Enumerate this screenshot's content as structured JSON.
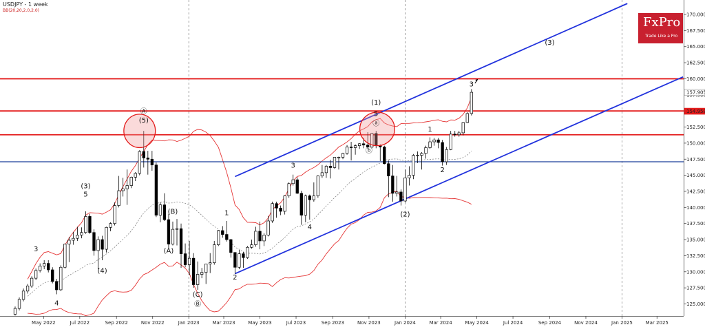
{
  "header": {
    "symbol_timeframe": "USDJPY - 1 week",
    "indicator": "BB(20,20,2.0,2.0)"
  },
  "brand": {
    "name": "FxPro",
    "tagline": "Trade Like a Pro"
  },
  "colors": {
    "candle_up": "#ffffff",
    "candle_down": "#000000",
    "resistance": "#e31a1a",
    "support": "#1a3f9a",
    "channel": "#2233dd",
    "bands": "#e53535",
    "midband": "#777777",
    "brand": "#c8202f"
  },
  "chart_data": {
    "type": "candlestick",
    "instrument": "USDJPY",
    "timeframe": "1 week",
    "ylim": [
      123.2,
      171.7
    ],
    "y_ticks": [
      125.0,
      127.5,
      130.0,
      132.5,
      135.0,
      137.5,
      140.0,
      142.5,
      145.0,
      147.5,
      150.0,
      152.5,
      155.0,
      157.5,
      160.0,
      162.5,
      165.0,
      167.5,
      170.0
    ],
    "y_tick_labels": [
      "125.000",
      "127.500",
      "130.000",
      "132.500",
      "135.000",
      "137.500",
      "140.000",
      "142.500",
      "145.000",
      "147.500",
      "150.000",
      "152.500",
      "155.000",
      "157.500",
      "160.000",
      "162.500",
      "165.000",
      "167.500",
      "170.000"
    ],
    "x_labels": [
      "May 2022",
      "Jul 2022",
      "Sep 2022",
      "Nov 2022",
      "Jan 2023",
      "Mar 2023",
      "May 2023",
      "Jul 2023",
      "Sep 2023",
      "Nov 2023",
      "Jan 2024",
      "Mar 2024",
      "May 2024",
      "Jul 2024",
      "Sep 2024",
      "Nov 2024",
      "Jan 2025",
      "Mar 2025"
    ],
    "x_dates": [
      "2022-05-01",
      "2022-07-01",
      "2022-09-01",
      "2022-11-01",
      "2023-01-01",
      "2023-03-01",
      "2023-05-01",
      "2023-07-01",
      "2023-09-01",
      "2023-11-01",
      "2024-01-01",
      "2024-03-01",
      "2024-05-01",
      "2024-07-01",
      "2024-09-01",
      "2024-11-01",
      "2025-01-01",
      "2025-03-01"
    ],
    "year_dividers": [
      "2023-01-01",
      "2024-01-01",
      "2025-01-01"
    ],
    "current_price_labels": [
      {
        "label": "157.905",
        "value": 157.905,
        "color": "#ffffff"
      },
      {
        "label": "154.958",
        "value": 154.958,
        "color": "#e31a1a"
      }
    ],
    "horizontal_levels": [
      {
        "value": 160.0,
        "color": "#e31a1a",
        "kind": "resistance"
      },
      {
        "value": 155.0,
        "color": "#e31a1a",
        "kind": "resistance"
      },
      {
        "value": 151.3,
        "color": "#e31a1a",
        "kind": "resistance"
      },
      {
        "value": 147.1,
        "color": "#1a3f9a",
        "kind": "support"
      }
    ],
    "channel_lines": [
      {
        "from": [
          "2023-03-20",
          144.8
        ],
        "to": [
          "2025-01-10",
          171.7
        ],
        "color": "#2233dd"
      },
      {
        "from": [
          "2023-03-20",
          129.7
        ],
        "to": [
          "2025-04-14",
          160.3
        ],
        "color": "#2233dd"
      }
    ],
    "circles": [
      {
        "center": [
          "2022-10-10",
          151.9
        ],
        "r_weeks": 3.8,
        "r_yen": 2.6
      },
      {
        "center": [
          "2023-11-15",
          152.2
        ],
        "r_weeks": 4.2,
        "r_yen": 2.6
      }
    ],
    "candles": [
      {
        "d": "2022-03-14",
        "o": 123.4,
        "h": 124.6,
        "l": 123.2,
        "c": 124.3
      },
      {
        "d": "2022-03-21",
        "o": 124.3,
        "h": 126.0,
        "l": 124.0,
        "c": 125.7
      },
      {
        "d": "2022-03-28",
        "o": 125.7,
        "h": 127.4,
        "l": 125.4,
        "c": 127.0
      },
      {
        "d": "2022-04-04",
        "o": 127.0,
        "h": 128.1,
        "l": 126.6,
        "c": 127.8
      },
      {
        "d": "2022-04-11",
        "o": 127.8,
        "h": 129.3,
        "l": 127.5,
        "c": 129.0
      },
      {
        "d": "2022-04-18",
        "o": 129.0,
        "h": 130.5,
        "l": 128.7,
        "c": 130.2
      },
      {
        "d": "2022-04-25",
        "o": 130.2,
        "h": 131.3,
        "l": 129.9,
        "c": 130.9
      },
      {
        "d": "2022-05-02",
        "o": 130.9,
        "h": 131.8,
        "l": 130.4,
        "c": 131.3
      },
      {
        "d": "2022-05-09",
        "o": 131.3,
        "h": 131.8,
        "l": 129.9,
        "c": 130.3
      },
      {
        "d": "2022-05-16",
        "o": 130.3,
        "h": 130.7,
        "l": 128.2,
        "c": 128.5
      },
      {
        "d": "2022-05-23",
        "o": 128.5,
        "h": 128.9,
        "l": 126.5,
        "c": 127.2
      },
      {
        "d": "2022-05-30",
        "o": 127.2,
        "h": 131.0,
        "l": 127.0,
        "c": 130.7
      },
      {
        "d": "2022-06-06",
        "o": 130.7,
        "h": 134.4,
        "l": 130.5,
        "c": 134.3
      },
      {
        "d": "2022-06-13",
        "o": 134.3,
        "h": 135.4,
        "l": 131.5,
        "c": 134.9
      },
      {
        "d": "2022-06-20",
        "o": 134.9,
        "h": 136.2,
        "l": 134.2,
        "c": 135.2
      },
      {
        "d": "2022-06-27",
        "o": 135.2,
        "h": 137.0,
        "l": 134.8,
        "c": 135.7
      },
      {
        "d": "2022-07-04",
        "o": 135.7,
        "h": 136.9,
        "l": 135.2,
        "c": 136.1
      },
      {
        "d": "2022-07-11",
        "o": 136.1,
        "h": 139.4,
        "l": 135.9,
        "c": 138.6
      },
      {
        "d": "2022-07-18",
        "o": 138.6,
        "h": 139.0,
        "l": 135.9,
        "c": 136.1
      },
      {
        "d": "2022-07-25",
        "o": 136.1,
        "h": 136.6,
        "l": 132.5,
        "c": 133.3
      },
      {
        "d": "2022-08-01",
        "o": 133.3,
        "h": 135.5,
        "l": 130.4,
        "c": 135.0
      },
      {
        "d": "2022-08-08",
        "o": 135.0,
        "h": 135.6,
        "l": 131.8,
        "c": 133.5
      },
      {
        "d": "2022-08-15",
        "o": 133.5,
        "h": 137.0,
        "l": 133.0,
        "c": 136.9
      },
      {
        "d": "2022-08-22",
        "o": 136.9,
        "h": 137.7,
        "l": 136.3,
        "c": 137.5
      },
      {
        "d": "2022-08-29",
        "o": 137.5,
        "h": 140.8,
        "l": 137.2,
        "c": 140.3
      },
      {
        "d": "2022-09-05",
        "o": 140.3,
        "h": 144.9,
        "l": 140.0,
        "c": 142.6
      },
      {
        "d": "2022-09-12",
        "o": 142.6,
        "h": 144.6,
        "l": 141.7,
        "c": 142.9
      },
      {
        "d": "2022-09-19",
        "o": 142.9,
        "h": 145.9,
        "l": 140.4,
        "c": 143.4
      },
      {
        "d": "2022-09-26",
        "o": 143.4,
        "h": 144.8,
        "l": 143.0,
        "c": 144.7
      },
      {
        "d": "2022-10-03",
        "o": 144.7,
        "h": 145.5,
        "l": 144.1,
        "c": 145.3
      },
      {
        "d": "2022-10-10",
        "o": 145.3,
        "h": 148.9,
        "l": 145.0,
        "c": 148.7
      },
      {
        "d": "2022-10-17",
        "o": 148.7,
        "h": 151.9,
        "l": 146.2,
        "c": 147.7
      },
      {
        "d": "2022-10-24",
        "o": 147.7,
        "h": 148.8,
        "l": 145.1,
        "c": 147.5
      },
      {
        "d": "2022-10-31",
        "o": 147.5,
        "h": 148.8,
        "l": 145.7,
        "c": 146.6
      },
      {
        "d": "2022-11-07",
        "o": 146.6,
        "h": 147.0,
        "l": 138.5,
        "c": 138.8
      },
      {
        "d": "2022-11-14",
        "o": 138.8,
        "h": 140.8,
        "l": 137.7,
        "c": 140.4
      },
      {
        "d": "2022-11-21",
        "o": 140.4,
        "h": 142.2,
        "l": 137.9,
        "c": 138.1
      },
      {
        "d": "2022-11-28",
        "o": 138.1,
        "h": 139.0,
        "l": 133.6,
        "c": 134.3
      },
      {
        "d": "2022-12-05",
        "o": 134.3,
        "h": 137.8,
        "l": 134.1,
        "c": 136.6
      },
      {
        "d": "2022-12-12",
        "o": 136.6,
        "h": 138.2,
        "l": 134.1,
        "c": 136.7
      },
      {
        "d": "2022-12-19",
        "o": 136.7,
        "h": 137.5,
        "l": 130.6,
        "c": 132.8
      },
      {
        "d": "2022-12-26",
        "o": 132.8,
        "h": 134.4,
        "l": 130.7,
        "c": 131.1
      },
      {
        "d": "2023-01-02",
        "o": 131.1,
        "h": 134.8,
        "l": 129.5,
        "c": 132.1
      },
      {
        "d": "2023-01-09",
        "o": 132.1,
        "h": 132.9,
        "l": 127.5,
        "c": 128.0
      },
      {
        "d": "2023-01-16",
        "o": 128.0,
        "h": 131.6,
        "l": 127.2,
        "c": 129.6
      },
      {
        "d": "2023-01-23",
        "o": 129.6,
        "h": 130.6,
        "l": 129.0,
        "c": 129.9
      },
      {
        "d": "2023-01-30",
        "o": 129.9,
        "h": 131.2,
        "l": 128.1,
        "c": 131.2
      },
      {
        "d": "2023-02-06",
        "o": 131.2,
        "h": 132.9,
        "l": 129.8,
        "c": 131.4
      },
      {
        "d": "2023-02-13",
        "o": 131.4,
        "h": 134.8,
        "l": 131.1,
        "c": 134.2
      },
      {
        "d": "2023-02-20",
        "o": 134.2,
        "h": 136.5,
        "l": 134.0,
        "c": 136.4
      },
      {
        "d": "2023-02-27",
        "o": 136.4,
        "h": 137.1,
        "l": 135.3,
        "c": 135.8
      },
      {
        "d": "2023-03-06",
        "o": 135.8,
        "h": 137.9,
        "l": 134.7,
        "c": 135.0
      },
      {
        "d": "2023-03-13",
        "o": 135.0,
        "h": 135.1,
        "l": 132.2,
        "c": 133.0
      },
      {
        "d": "2023-03-20",
        "o": 133.0,
        "h": 133.0,
        "l": 129.7,
        "c": 130.7
      },
      {
        "d": "2023-03-27",
        "o": 130.7,
        "h": 133.4,
        "l": 130.4,
        "c": 132.8
      },
      {
        "d": "2023-04-03",
        "o": 132.8,
        "h": 133.1,
        "l": 130.6,
        "c": 132.2
      },
      {
        "d": "2023-04-10",
        "o": 132.2,
        "h": 134.0,
        "l": 132.0,
        "c": 133.8
      },
      {
        "d": "2023-04-17",
        "o": 133.8,
        "h": 135.0,
        "l": 133.6,
        "c": 134.2
      },
      {
        "d": "2023-04-24",
        "o": 134.2,
        "h": 137.0,
        "l": 133.9,
        "c": 136.3
      },
      {
        "d": "2023-05-01",
        "o": 136.3,
        "h": 137.8,
        "l": 133.5,
        "c": 134.8
      },
      {
        "d": "2023-05-08",
        "o": 134.8,
        "h": 136.0,
        "l": 134.0,
        "c": 135.7
      },
      {
        "d": "2023-05-15",
        "o": 135.7,
        "h": 138.7,
        "l": 135.5,
        "c": 137.9
      },
      {
        "d": "2023-05-22",
        "o": 137.9,
        "h": 140.9,
        "l": 137.6,
        "c": 140.6
      },
      {
        "d": "2023-05-29",
        "o": 140.6,
        "h": 140.9,
        "l": 138.4,
        "c": 139.9
      },
      {
        "d": "2023-06-05",
        "o": 139.9,
        "h": 140.3,
        "l": 138.8,
        "c": 139.4
      },
      {
        "d": "2023-06-12",
        "o": 139.4,
        "h": 141.9,
        "l": 138.9,
        "c": 141.8
      },
      {
        "d": "2023-06-19",
        "o": 141.8,
        "h": 143.9,
        "l": 141.5,
        "c": 143.7
      },
      {
        "d": "2023-06-26",
        "o": 143.7,
        "h": 145.1,
        "l": 143.4,
        "c": 144.3
      },
      {
        "d": "2023-07-03",
        "o": 144.3,
        "h": 144.7,
        "l": 142.1,
        "c": 142.2
      },
      {
        "d": "2023-07-10",
        "o": 142.2,
        "h": 142.6,
        "l": 137.3,
        "c": 138.8
      },
      {
        "d": "2023-07-17",
        "o": 138.8,
        "h": 142.0,
        "l": 137.7,
        "c": 141.8
      },
      {
        "d": "2023-07-24",
        "o": 141.8,
        "h": 142.0,
        "l": 138.1,
        "c": 141.2
      },
      {
        "d": "2023-07-31",
        "o": 141.2,
        "h": 143.9,
        "l": 140.9,
        "c": 141.8
      },
      {
        "d": "2023-08-07",
        "o": 141.8,
        "h": 145.0,
        "l": 141.5,
        "c": 144.9
      },
      {
        "d": "2023-08-14",
        "o": 144.9,
        "h": 146.6,
        "l": 144.6,
        "c": 145.4
      },
      {
        "d": "2023-08-21",
        "o": 145.4,
        "h": 146.6,
        "l": 144.6,
        "c": 146.4
      },
      {
        "d": "2023-08-28",
        "o": 146.4,
        "h": 147.4,
        "l": 144.5,
        "c": 146.2
      },
      {
        "d": "2023-09-04",
        "o": 146.2,
        "h": 147.8,
        "l": 146.0,
        "c": 147.8
      },
      {
        "d": "2023-09-11",
        "o": 147.8,
        "h": 147.9,
        "l": 145.9,
        "c": 147.8
      },
      {
        "d": "2023-09-18",
        "o": 147.8,
        "h": 148.5,
        "l": 147.5,
        "c": 148.4
      },
      {
        "d": "2023-09-25",
        "o": 148.4,
        "h": 149.7,
        "l": 148.2,
        "c": 149.4
      },
      {
        "d": "2023-10-02",
        "o": 149.4,
        "h": 150.2,
        "l": 147.3,
        "c": 149.3
      },
      {
        "d": "2023-10-09",
        "o": 149.3,
        "h": 149.8,
        "l": 148.2,
        "c": 149.6
      },
      {
        "d": "2023-10-16",
        "o": 149.6,
        "h": 150.0,
        "l": 149.1,
        "c": 149.9
      },
      {
        "d": "2023-10-23",
        "o": 149.9,
        "h": 150.8,
        "l": 149.2,
        "c": 149.7
      },
      {
        "d": "2023-10-30",
        "o": 149.7,
        "h": 151.7,
        "l": 149.1,
        "c": 149.4
      },
      {
        "d": "2023-11-06",
        "o": 149.4,
        "h": 151.6,
        "l": 149.2,
        "c": 151.5
      },
      {
        "d": "2023-11-13",
        "o": 151.5,
        "h": 151.9,
        "l": 149.2,
        "c": 149.6
      },
      {
        "d": "2023-11-20",
        "o": 149.6,
        "h": 149.8,
        "l": 147.2,
        "c": 149.4
      },
      {
        "d": "2023-11-27",
        "o": 149.4,
        "h": 149.6,
        "l": 146.7,
        "c": 146.8
      },
      {
        "d": "2023-12-04",
        "o": 146.8,
        "h": 147.3,
        "l": 141.6,
        "c": 144.9
      },
      {
        "d": "2023-12-11",
        "o": 144.9,
        "h": 146.6,
        "l": 140.9,
        "c": 142.2
      },
      {
        "d": "2023-12-18",
        "o": 142.2,
        "h": 144.9,
        "l": 141.7,
        "c": 142.4
      },
      {
        "d": "2023-12-25",
        "o": 142.4,
        "h": 142.8,
        "l": 140.3,
        "c": 141.0
      },
      {
        "d": "2024-01-01",
        "o": 141.0,
        "h": 145.9,
        "l": 140.8,
        "c": 144.6
      },
      {
        "d": "2024-01-08",
        "o": 144.6,
        "h": 146.4,
        "l": 143.4,
        "c": 145.0
      },
      {
        "d": "2024-01-15",
        "o": 145.0,
        "h": 148.3,
        "l": 144.4,
        "c": 148.1
      },
      {
        "d": "2024-01-22",
        "o": 148.1,
        "h": 148.7,
        "l": 146.9,
        "c": 148.1
      },
      {
        "d": "2024-01-29",
        "o": 148.1,
        "h": 148.6,
        "l": 145.9,
        "c": 148.4
      },
      {
        "d": "2024-02-05",
        "o": 148.4,
        "h": 149.6,
        "l": 147.6,
        "c": 149.3
      },
      {
        "d": "2024-02-12",
        "o": 149.3,
        "h": 150.9,
        "l": 149.1,
        "c": 150.2
      },
      {
        "d": "2024-02-19",
        "o": 150.2,
        "h": 150.8,
        "l": 149.6,
        "c": 150.5
      },
      {
        "d": "2024-02-26",
        "o": 150.5,
        "h": 150.8,
        "l": 149.2,
        "c": 150.1
      },
      {
        "d": "2024-03-04",
        "o": 150.1,
        "h": 150.5,
        "l": 146.5,
        "c": 147.1
      },
      {
        "d": "2024-03-11",
        "o": 147.1,
        "h": 149.4,
        "l": 146.6,
        "c": 149.0
      },
      {
        "d": "2024-03-18",
        "o": 149.0,
        "h": 151.9,
        "l": 148.9,
        "c": 151.4
      },
      {
        "d": "2024-03-25",
        "o": 151.4,
        "h": 151.9,
        "l": 151.0,
        "c": 151.3
      },
      {
        "d": "2024-04-01",
        "o": 151.3,
        "h": 151.9,
        "l": 151.0,
        "c": 151.6
      },
      {
        "d": "2024-04-08",
        "o": 151.6,
        "h": 153.3,
        "l": 151.2,
        "c": 153.2
      },
      {
        "d": "2024-04-15",
        "o": 153.2,
        "h": 154.8,
        "l": 153.1,
        "c": 154.6
      },
      {
        "d": "2024-04-22",
        "o": 154.6,
        "h": 158.4,
        "l": 154.3,
        "c": 157.9
      }
    ],
    "wave_labels": [
      {
        "text": "3",
        "at": [
          "2022-04-18",
          133.2
        ]
      },
      {
        "text": "4",
        "at": [
          "2022-05-23",
          124.8
        ]
      },
      {
        "text": "(3)",
        "at": [
          "2022-07-11",
          143.0
        ]
      },
      {
        "text": "5",
        "at": [
          "2022-07-11",
          141.7
        ]
      },
      {
        "text": "(4)",
        "at": [
          "2022-08-08",
          129.8
        ]
      },
      {
        "text": "Ⓐ",
        "at": [
          "2022-10-17",
          154.6
        ]
      },
      {
        "text": "(5)",
        "at": [
          "2022-10-17",
          153.2
        ]
      },
      {
        "text": "(B)",
        "at": [
          "2022-12-05",
          139.0
        ]
      },
      {
        "text": "(A)",
        "at": [
          "2022-11-28",
          132.9
        ]
      },
      {
        "text": "(C)",
        "at": [
          "2023-01-16",
          126.1
        ]
      },
      {
        "text": "Ⓑ",
        "at": [
          "2023-01-16",
          124.6
        ]
      },
      {
        "text": "1",
        "at": [
          "2023-03-06",
          138.8
        ]
      },
      {
        "text": "2",
        "at": [
          "2023-03-20",
          128.8
        ]
      },
      {
        "text": "3",
        "at": [
          "2023-06-26",
          146.2
        ]
      },
      {
        "text": "4",
        "at": [
          "2023-07-24",
          136.6
        ]
      },
      {
        "text": "(1)",
        "at": [
          "2023-11-13",
          156.0
        ]
      },
      {
        "text": "5",
        "at": [
          "2023-11-13",
          154.2
        ]
      },
      {
        "text": "ⓐ",
        "at": [
          "2023-11-13",
          152.7
        ]
      },
      {
        "text": "ⓑ",
        "at": [
          "2023-11-01",
          148.5
        ]
      },
      {
        "text": "(2)",
        "at": [
          "2024-01-01",
          138.6
        ]
      },
      {
        "text": "1",
        "at": [
          "2024-02-12",
          151.8
        ]
      },
      {
        "text": "2",
        "at": [
          "2024-03-04",
          145.5
        ]
      },
      {
        "text": "3",
        "at": [
          "2024-04-22",
          158.8
        ]
      },
      {
        "text": "(3)",
        "at": [
          "2024-09-01",
          165.3
        ]
      }
    ]
  }
}
